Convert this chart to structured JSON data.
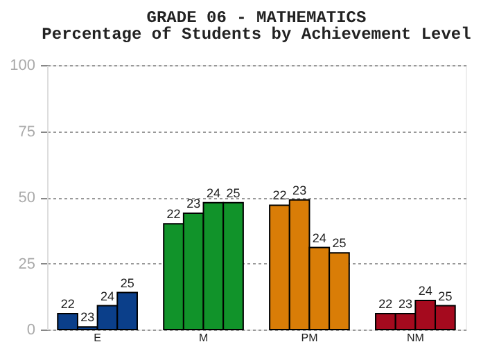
{
  "chart_data": {
    "type": "bar",
    "title": "GRADE 06 - MATHEMATICS",
    "subtitle": "Percentage of Students by Achievement Level",
    "categories": [
      "E",
      "M",
      "PM",
      "NM"
    ],
    "series": [
      {
        "name": "22",
        "colors": [
          "#0b3f8a",
          "#11932a",
          "#d97d07",
          "#a50a1e"
        ],
        "values": [
          6,
          40,
          47,
          6
        ]
      },
      {
        "name": "23",
        "colors": [
          "#0b3f8a",
          "#11932a",
          "#d97d07",
          "#a50a1e"
        ],
        "values": [
          1,
          44,
          49,
          6
        ]
      },
      {
        "name": "24",
        "colors": [
          "#0b3f8a",
          "#11932a",
          "#d97d07",
          "#a50a1e"
        ],
        "values": [
          9,
          48,
          31,
          11
        ]
      },
      {
        "name": "25",
        "colors": [
          "#0b3f8a",
          "#11932a",
          "#d97d07",
          "#a50a1e"
        ],
        "values": [
          14,
          48,
          29,
          9
        ]
      }
    ],
    "ylim": [
      0,
      100
    ],
    "yticks": [
      0,
      25,
      50,
      75,
      100
    ],
    "grid": "y"
  }
}
